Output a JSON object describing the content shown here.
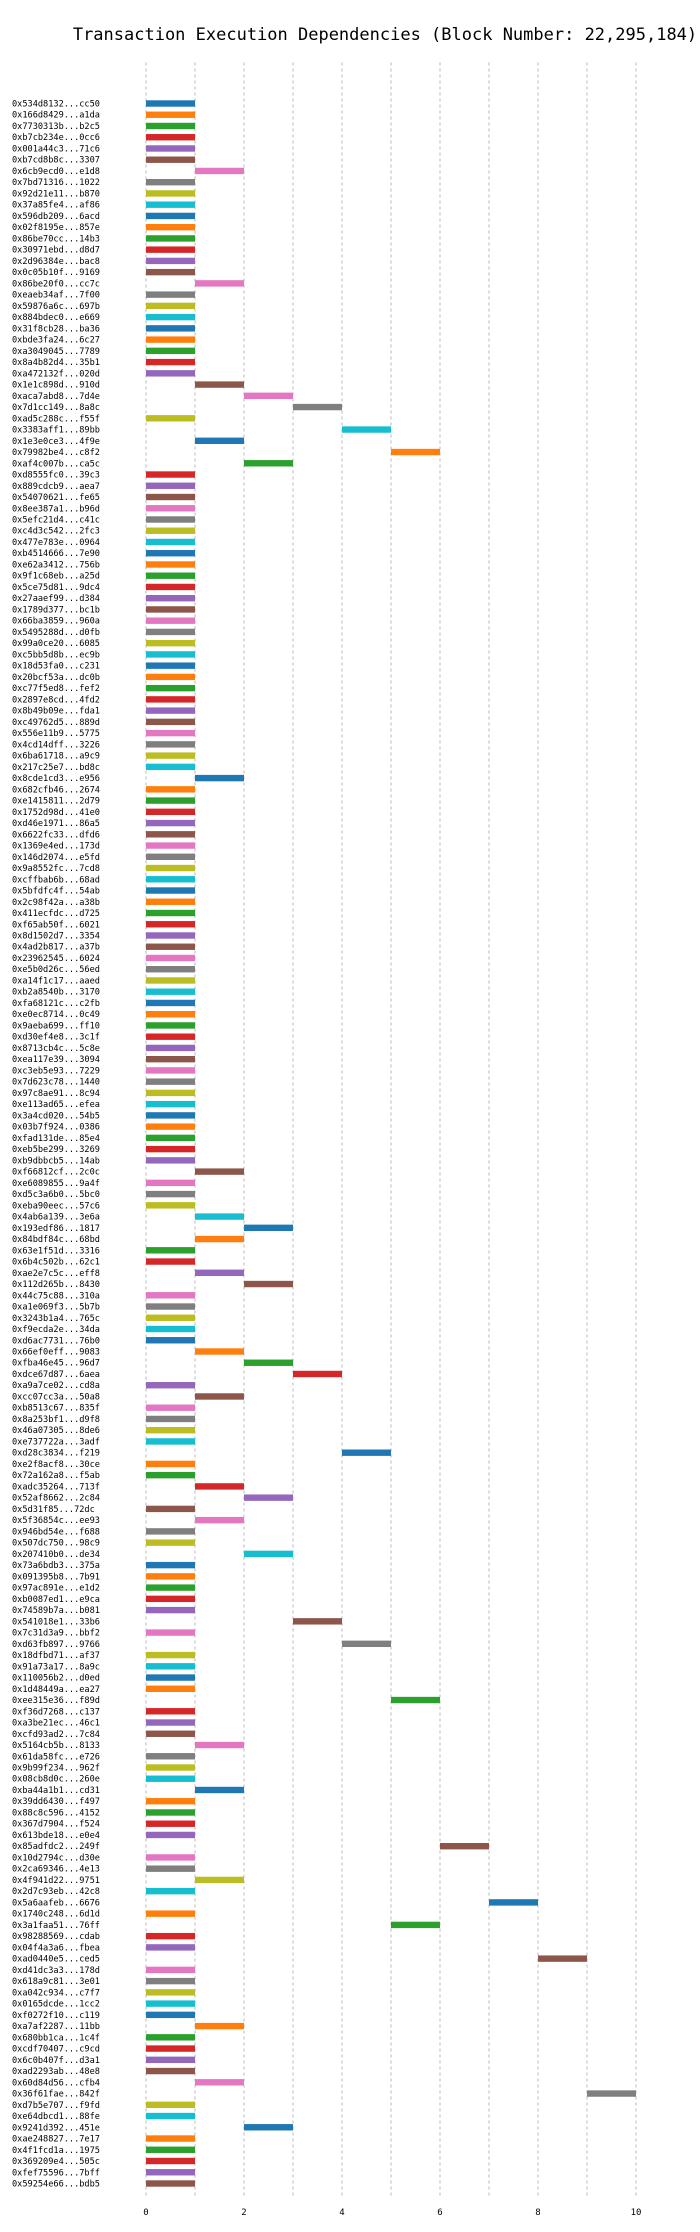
{
  "chart_data": {
    "type": "bar",
    "orientation": "horizontal-gantt",
    "title": "Transaction Execution Dependencies (Block Number: 22,295,184)",
    "xlabel": "",
    "ylabel": "",
    "xlim": [
      0,
      10
    ],
    "xticks": [
      0,
      2,
      4,
      6,
      8,
      10
    ],
    "grid": true,
    "colors": [
      "#1f77b4",
      "#ff7f0e",
      "#2ca02c",
      "#d62728",
      "#9467bd",
      "#8c564b",
      "#e377c2",
      "#7f7f7f",
      "#bcbd22",
      "#17becf"
    ],
    "labels": [
      "0x534d8132...cc50",
      "0x166d8429...a1da",
      "0x7730313b...b2c5",
      "0xb7cb234e...0cc6",
      "0x001a44c3...71c6",
      "0xb7cd8b8c...3307",
      "0x6cb9ecd0...e1d8",
      "0x7bd71316...1022",
      "0x92d21e11...b870",
      "0x37a85fe4...af86",
      "0x596db209...6acd",
      "0x02f8195e...857e",
      "0x86be70cc...14b3",
      "0x30971ebd...d8d7",
      "0x2d96384e...bac8",
      "0x0c05b10f...9169",
      "0x86be20f0...cc7c",
      "0xeaeb34af...7f00",
      "0x59876a6c...697b",
      "0x884bdec0...e669",
      "0x31f8cb28...ba36",
      "0xbde3fa24...6c27",
      "0xa3049045...7789",
      "0x8a4b82d4...35b1",
      "0xa472132f...020d",
      "0x1e1c898d...910d",
      "0xaca7abd8...7d4e",
      "0x7d1cc149...8a8c",
      "0xad5c288c...f55f",
      "0x3383aff1...89bb",
      "0x1e3e0ce3...4f9e",
      "0x79982be4...c8f2",
      "0xaf4c007b...ca5c",
      "0xd8555fc0...39c3",
      "0x889cdcb9...aea7",
      "0x54070621...fe65",
      "0x8ee387a1...b96d",
      "0x5efc21d4...c41c",
      "0xc4d3c542...2fc3",
      "0x477e783e...0964",
      "0xb4514666...7e90",
      "0xe62a3412...756b",
      "0x9f1c68eb...a25d",
      "0x5ce75d81...9dc4",
      "0x27aaef99...d384",
      "0x1789d377...bc1b",
      "0x66ba3859...960a",
      "0x5495288d...d0fb",
      "0x99a0ce20...6085",
      "0xc5bb5d8b...ec9b",
      "0x18d53fa0...c231",
      "0x20bcf53a...dc0b",
      "0xc77f5ed8...fef2",
      "0x2897e8cd...4fd2",
      "0x8b49b09e...fda1",
      "0xc49762d5...889d",
      "0x556e11b9...5775",
      "0x4cd14dff...3226",
      "0x6ba61718...a9c9",
      "0x217c25e7...bd8c",
      "0x8cde1cd3...e956",
      "0x682cfb46...2674",
      "0xe1415811...2d79",
      "0x1752d98d...41e0",
      "0xd46e1971...86a5",
      "0x6622fc33...dfd6",
      "0x1369e4ed...173d",
      "0x146d2074...e5fd",
      "0x9a8552fc...7cd8",
      "0xcffbab6b...68ad",
      "0x5bfdfc4f...54ab",
      "0x2c98f42a...a38b",
      "0x411ecfdc...d725",
      "0xf65ab50f...6021",
      "0x8d1502d7...3354",
      "0x4ad2b817...a37b",
      "0x23962545...6024",
      "0xe5b0d26c...56ed",
      "0xa14f1c17...aaed",
      "0xb2a8540b...3170",
      "0xfa68121c...c2fb",
      "0xe0ec8714...0c49",
      "0x9aeba699...ff10",
      "0xd30ef4e8...3c1f",
      "0x8713cb4c...5c8e",
      "0xea117e39...3094",
      "0xc3eb5e93...7229",
      "0x7d623c78...1440",
      "0x97c8ae91...8c94",
      "0xe113ad65...efea",
      "0x3a4cd020...54b5",
      "0x03b7f924...0386",
      "0xfad131de...85e4",
      "0xeb5be299...3269",
      "0xb9dbbcb5...14ab",
      "0xf66812cf...2c0c",
      "0xe6089855...9a4f",
      "0xd5c3a6b0...5bc0",
      "0xeba90eec...57c6",
      "0x4ab6a139...3e6a",
      "0x193edf86...1817",
      "0x84bdf84c...68bd",
      "0x63e1f51d...3316",
      "0x6b4c502b...62c1",
      "0xae2e7c5c...eff8",
      "0x112d265b...8430",
      "0x44c75c88...310a",
      "0xa1e069f3...5b7b",
      "0x3243b1a4...765c",
      "0xf9ecda2e...34da",
      "0xd6ac7731...76b0",
      "0x66ef0eff...9083",
      "0xfba46e45...96d7",
      "0xdce67d87...6aea",
      "0xa9a7ce02...cd8a",
      "0xcc07cc3a...50a8",
      "0xb8513c67...835f",
      "0x8a253bf1...d9f8",
      "0x46a07305...8de6",
      "0xe737722a...3adf",
      "0xd28c3834...f219",
      "0xe2f8acf8...30ce",
      "0x72a162a8...f5ab",
      "0xadc35264...713f",
      "0x52af8662...2c84",
      "0x5d31f85...72dc",
      "0x5f36854c...ee93",
      "0x946bd54e...f688",
      "0x507dc750...98c9",
      "0x207410b0...de34",
      "0x73a6bdb3...375a",
      "0x091395b8...7b91",
      "0x97ac891e...e1d2",
      "0xb0087ed1...e9ca",
      "0x74589b7a...b081",
      "0x541018e1...33b6",
      "0x7c31d3a9...bbf2",
      "0xd63fb897...9766",
      "0x18dfbd71...af37",
      "0x91a73a17...8a9c",
      "0x110056b2...d0ed",
      "0x1d48449a...ea27",
      "0xee315e36...f89d",
      "0xf36d7268...c137",
      "0xa3be21ec...46c1",
      "0xcfd93ad2...7c84",
      "0x5164cb5b...8133",
      "0x61da58fc...e726",
      "0x9b99f234...962f",
      "0x08cb8d0c...260e",
      "0xba44a1b1...cd31",
      "0x39dd6430...f497",
      "0x88c8c596...4152",
      "0x367d7904...f524",
      "0x613bde18...e0e4",
      "0x85adfdc2...249f",
      "0x10d2794c...d30e",
      "0x2ca69346...4e13",
      "0x4f941d22...9751",
      "0x2d7c93eb...42c8",
      "0x5a6aafeb...6676",
      "0x1740c248...6d1d",
      "0x3a1faa51...76ff",
      "0x98288569...cdab",
      "0x04f4a3a6...fbea",
      "0xad0440e5...ced5",
      "0xd41dc3a3...178d",
      "0x618a9c81...3e01",
      "0xa042c934...c7f7",
      "0x0165dcde...1cc2",
      "0xf0272f10...c119",
      "0xa7af2287...11bb",
      "0x680bb1ca...1c4f",
      "0xcdf70407...c9cd",
      "0x6c0b407f...d3a1",
      "0xad2293ab...48e8",
      "0x60d84d56...cfb4",
      "0x36f61fae...842f",
      "0xd7b5e707...f9fd",
      "0xe64dbcd1...88fe",
      "0x9241d392...451e",
      "0xae248827...7e17",
      "0x4f1fcd1a...1975",
      "0x369209e4...505c",
      "0xfef75596...7bff",
      "0x59254e66...bdb5"
    ],
    "starts": [
      0,
      0,
      0,
      0,
      0,
      0,
      1,
      0,
      0,
      0,
      0,
      0,
      0,
      0,
      0,
      0,
      1,
      0,
      0,
      0,
      0,
      0,
      0,
      0,
      0,
      1,
      2,
      3,
      0,
      4,
      1,
      5,
      2,
      0,
      0,
      0,
      0,
      0,
      0,
      0,
      0,
      0,
      0,
      0,
      0,
      0,
      0,
      0,
      0,
      0,
      0,
      0,
      0,
      0,
      0,
      0,
      0,
      0,
      0,
      0,
      1,
      0,
      0,
      0,
      0,
      0,
      0,
      0,
      0,
      0,
      0,
      0,
      0,
      0,
      0,
      0,
      0,
      0,
      0,
      0,
      0,
      0,
      0,
      0,
      0,
      0,
      0,
      0,
      0,
      0,
      0,
      0,
      0,
      0,
      0,
      1,
      0,
      0,
      0,
      1,
      2,
      1,
      0,
      0,
      1,
      2,
      0,
      0,
      0,
      0,
      0,
      1,
      2,
      3,
      0,
      1,
      0,
      0,
      0,
      0,
      4,
      0,
      0,
      1,
      2,
      0,
      1,
      0,
      0,
      2,
      0,
      0,
      0,
      0,
      0,
      3,
      0,
      4,
      0,
      0,
      0,
      0,
      5,
      0,
      0,
      0,
      1,
      0,
      0,
      0,
      1,
      0,
      0,
      0,
      0,
      6,
      0,
      0,
      1,
      0,
      7,
      0,
      5,
      0,
      0,
      8,
      0,
      0,
      0,
      0,
      0,
      1,
      0,
      0,
      0,
      0,
      1,
      9,
      0,
      0,
      2,
      0,
      0,
      0,
      0,
      0
    ],
    "durations": [
      1,
      1,
      1,
      1,
      1,
      1,
      1,
      1,
      1,
      1,
      1,
      1,
      1,
      1,
      1,
      1,
      1,
      1,
      1,
      1,
      1,
      1,
      1,
      1,
      1,
      1,
      1,
      1,
      1,
      1,
      1,
      1,
      1,
      1,
      1,
      1,
      1,
      1,
      1,
      1,
      1,
      1,
      1,
      1,
      1,
      1,
      1,
      1,
      1,
      1,
      1,
      1,
      1,
      1,
      1,
      1,
      1,
      1,
      1,
      1,
      1,
      1,
      1,
      1,
      1,
      1,
      1,
      1,
      1,
      1,
      1,
      1,
      1,
      1,
      1,
      1,
      1,
      1,
      1,
      1,
      1,
      1,
      1,
      1,
      1,
      1,
      1,
      1,
      1,
      1,
      1,
      1,
      1,
      1,
      1,
      1,
      1,
      1,
      1,
      1,
      1,
      1,
      1,
      1,
      1,
      1,
      1,
      1,
      1,
      1,
      1,
      1,
      1,
      1,
      1,
      1,
      1,
      1,
      1,
      1,
      1,
      1,
      1,
      1,
      1,
      1,
      1,
      1,
      1,
      1,
      1,
      1,
      1,
      1,
      1,
      1,
      1,
      1,
      1,
      1,
      1,
      1,
      1,
      1,
      1,
      1,
      1,
      1,
      1,
      1,
      1,
      1,
      1,
      1,
      1,
      1,
      1,
      1,
      1,
      1,
      1,
      1,
      1,
      1,
      1,
      1,
      1,
      1,
      1,
      1,
      1,
      1,
      1,
      1,
      1,
      1,
      1,
      1,
      1,
      1,
      1,
      1,
      1,
      1,
      1,
      1
    ]
  }
}
